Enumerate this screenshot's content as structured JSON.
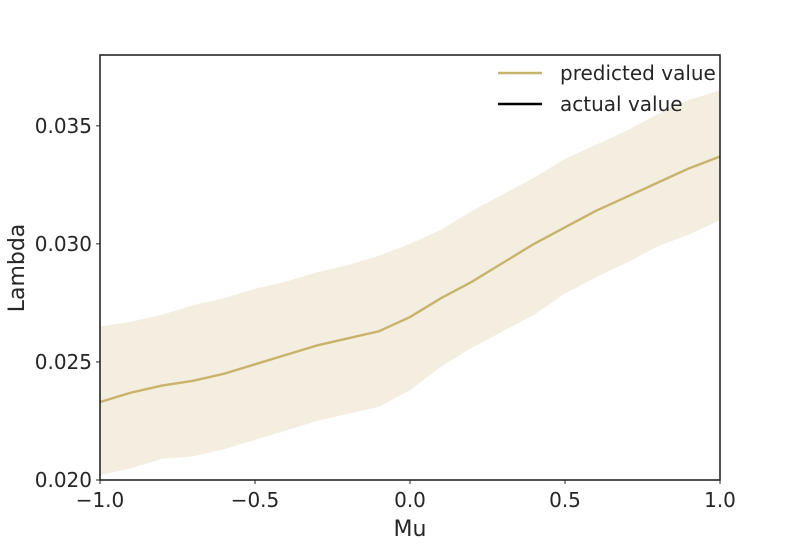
{
  "chart_data": {
    "type": "line",
    "title": "",
    "xlabel": "Mu",
    "ylabel": "Lambda",
    "xlim": [
      -1.0,
      1.0
    ],
    "ylim": [
      0.02,
      0.038
    ],
    "xticks": [
      -1.0,
      -0.5,
      0.0,
      0.5,
      1.0
    ],
    "xtick_labels": [
      "−1.0",
      "−0.5",
      "0.0",
      "0.5",
      "1.0"
    ],
    "yticks": [
      0.02,
      0.025,
      0.03,
      0.035
    ],
    "ytick_labels": [
      "0.020",
      "0.025",
      "0.030",
      "0.035"
    ],
    "grid": false,
    "legend_position": "top-right",
    "series": [
      {
        "name": "predicted value",
        "color": "#c9b36c",
        "band_color": "#f3eedf",
        "x": [
          -1.0,
          -0.9,
          -0.8,
          -0.7,
          -0.6,
          -0.5,
          -0.4,
          -0.3,
          -0.2,
          -0.1,
          0.0,
          0.1,
          0.2,
          0.3,
          0.4,
          0.5,
          0.6,
          0.7,
          0.8,
          0.9,
          1.0
        ],
        "y": [
          0.0233,
          0.0237,
          0.024,
          0.0242,
          0.0245,
          0.0249,
          0.0253,
          0.0257,
          0.026,
          0.0263,
          0.0269,
          0.0277,
          0.0284,
          0.0292,
          0.03,
          0.0307,
          0.0314,
          0.032,
          0.0326,
          0.0332,
          0.0337
        ],
        "lower": [
          0.0202,
          0.0205,
          0.0209,
          0.021,
          0.0213,
          0.0217,
          0.0221,
          0.0225,
          0.0228,
          0.0231,
          0.0238,
          0.0248,
          0.0256,
          0.0263,
          0.027,
          0.0279,
          0.0286,
          0.0292,
          0.0299,
          0.0304,
          0.031
        ],
        "upper": [
          0.0265,
          0.0267,
          0.027,
          0.0274,
          0.0277,
          0.0281,
          0.0284,
          0.0288,
          0.0291,
          0.0295,
          0.03,
          0.0306,
          0.0314,
          0.0321,
          0.0328,
          0.0336,
          0.0342,
          0.0348,
          0.0355,
          0.0361,
          0.0365
        ]
      },
      {
        "name": "actual value",
        "color": "#000000",
        "x": [],
        "y": []
      }
    ]
  }
}
